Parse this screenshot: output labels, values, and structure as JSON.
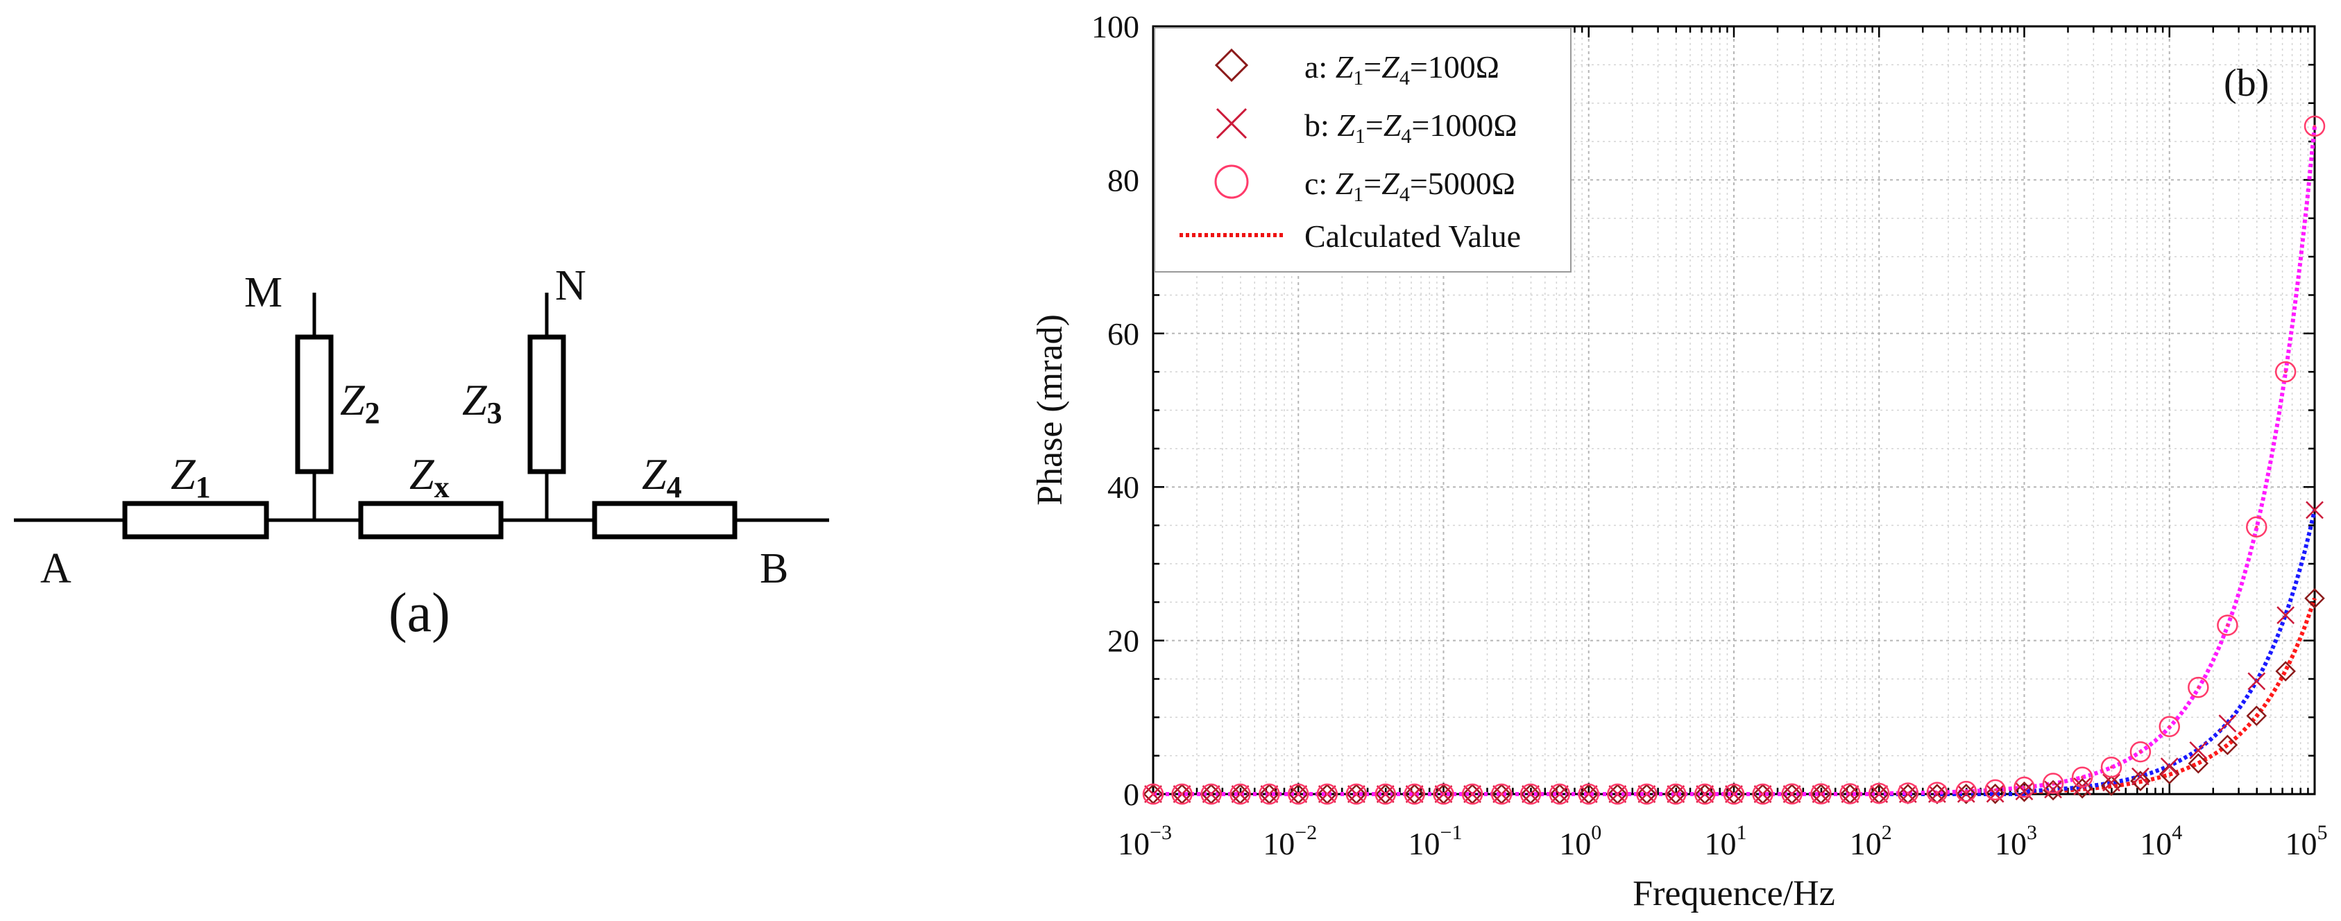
{
  "figure": {
    "panel_a": {
      "label": "(a)",
      "terminals": {
        "A": "A",
        "B": "B",
        "M": "M",
        "N": "N"
      },
      "impedances": {
        "z1": {
          "letter": "Z",
          "sub": "1"
        },
        "z2": {
          "letter": "Z",
          "sub": "2"
        },
        "z3": {
          "letter": "Z",
          "sub": "3"
        },
        "z4": {
          "letter": "Z",
          "sub": "4"
        },
        "zx": {
          "letter": "Z",
          "sub": "x"
        }
      }
    },
    "panel_b": {
      "label": "(b)"
    }
  },
  "colors": {
    "series_a": "#8B1a1a",
    "series_b": "#cc1a3a",
    "series_c": "#ff3b6b",
    "line_a": "#ff1a1a",
    "line_b": "#1a1aff",
    "line_c": "#ff1aff",
    "legend_line": "#ee1111"
  },
  "chart_data": {
    "type": "scatter",
    "xscale": "log",
    "xlim": [
      0.001,
      100000
    ],
    "ylim": [
      0,
      100
    ],
    "xlabel": "Frequence/Hz",
    "ylabel": "Phase (mrad)",
    "grid": true,
    "legend_position": "top-left",
    "x_tick_labels": [
      {
        "base": "10",
        "exp": "−3"
      },
      {
        "base": "10",
        "exp": "−2"
      },
      {
        "base": "10",
        "exp": "−1"
      },
      {
        "base": "10",
        "exp": "0"
      },
      {
        "base": "10",
        "exp": "1"
      },
      {
        "base": "10",
        "exp": "2"
      },
      {
        "base": "10",
        "exp": "3"
      },
      {
        "base": "10",
        "exp": "4"
      },
      {
        "base": "10",
        "exp": "5"
      }
    ],
    "y_ticks": [
      0,
      20,
      40,
      60,
      80,
      100
    ],
    "x": [
      0.001,
      0.00158,
      0.00251,
      0.00398,
      0.00631,
      0.01,
      0.0158,
      0.0251,
      0.0398,
      0.0631,
      0.1,
      0.158,
      0.251,
      0.398,
      0.631,
      1,
      1.58,
      2.51,
      3.98,
      6.31,
      10,
      15.8,
      25.1,
      39.8,
      63.1,
      100,
      158,
      251,
      398,
      631,
      1000,
      1580,
      2510,
      3980,
      6310,
      10000,
      15800,
      25100,
      39800,
      63100,
      100000
    ],
    "series": [
      {
        "name": "a",
        "legend": {
          "prefix": "a: ",
          "z1": "Z",
          "s1": "1",
          "eq1": "=",
          "z4": "Z",
          "s4": "4",
          "value": "=100Ω"
        },
        "marker": "diamond",
        "values": [
          0.0,
          0.0,
          0.0,
          0.0,
          0.0,
          0.0,
          0.0,
          0.0,
          0.0,
          0.0,
          0.0,
          0.0,
          0.0,
          0.0,
          0.0,
          0.0,
          0.0,
          0.0,
          0.0,
          0.0,
          0.0,
          0.0,
          0.0,
          0.0,
          0.0,
          0.0,
          0.0,
          0.01,
          0.02,
          0.03,
          0.3,
          0.5,
          0.75,
          1.1,
          1.7,
          2.6,
          4.0,
          6.4,
          10.2,
          16.0,
          25.5
        ]
      },
      {
        "name": "b",
        "legend": {
          "prefix": "b: ",
          "z1": "Z",
          "s1": "1",
          "eq1": "=",
          "z4": "Z",
          "s4": "4",
          "value": "=1000Ω"
        },
        "marker": "x",
        "values": [
          0.0,
          0.0,
          0.0,
          0.0,
          0.0,
          0.0,
          0.0,
          0.0,
          0.0,
          0.0,
          0.0,
          0.0,
          0.0,
          0.0,
          0.0,
          0.0,
          0.0,
          0.0,
          0.0,
          0.0,
          0.0,
          0.0,
          0.0,
          0.0,
          0.0,
          0.0,
          0.0,
          0.01,
          0.02,
          0.04,
          0.35,
          0.6,
          1.0,
          1.5,
          2.3,
          3.6,
          5.7,
          9.2,
          14.7,
          23.3,
          37.0
        ]
      },
      {
        "name": "c",
        "legend": {
          "prefix": "c: ",
          "z1": "Z",
          "s1": "1",
          "eq1": "=",
          "z4": "Z",
          "s4": "4",
          "value": "=5000Ω"
        },
        "marker": "circle",
        "values": [
          0.0,
          0.0,
          0.0,
          0.0,
          0.0,
          0.0,
          0.0,
          0.0,
          0.0,
          0.0,
          0.0,
          0.0,
          0.0,
          0.0,
          0.0,
          0.0,
          0.0,
          0.0,
          0.0,
          0.0,
          0.0,
          0.0,
          0.02,
          0.03,
          0.05,
          0.09,
          0.14,
          0.22,
          0.35,
          0.55,
          0.9,
          1.4,
          2.2,
          3.5,
          5.5,
          8.8,
          13.9,
          22.0,
          34.8,
          55.0,
          87.0
        ]
      }
    ],
    "fit_lines": [
      {
        "name": "calc_a",
        "legend": "Calculated Value",
        "x_start": 1000,
        "y_start": 0.3,
        "y_end": 25.5
      },
      {
        "name": "calc_b",
        "x_start": 1000,
        "y_start": 0.35,
        "y_end": 37.0
      },
      {
        "name": "calc_c",
        "x_start": 100,
        "y_start": 0.09,
        "y_end": 87.0
      }
    ]
  }
}
